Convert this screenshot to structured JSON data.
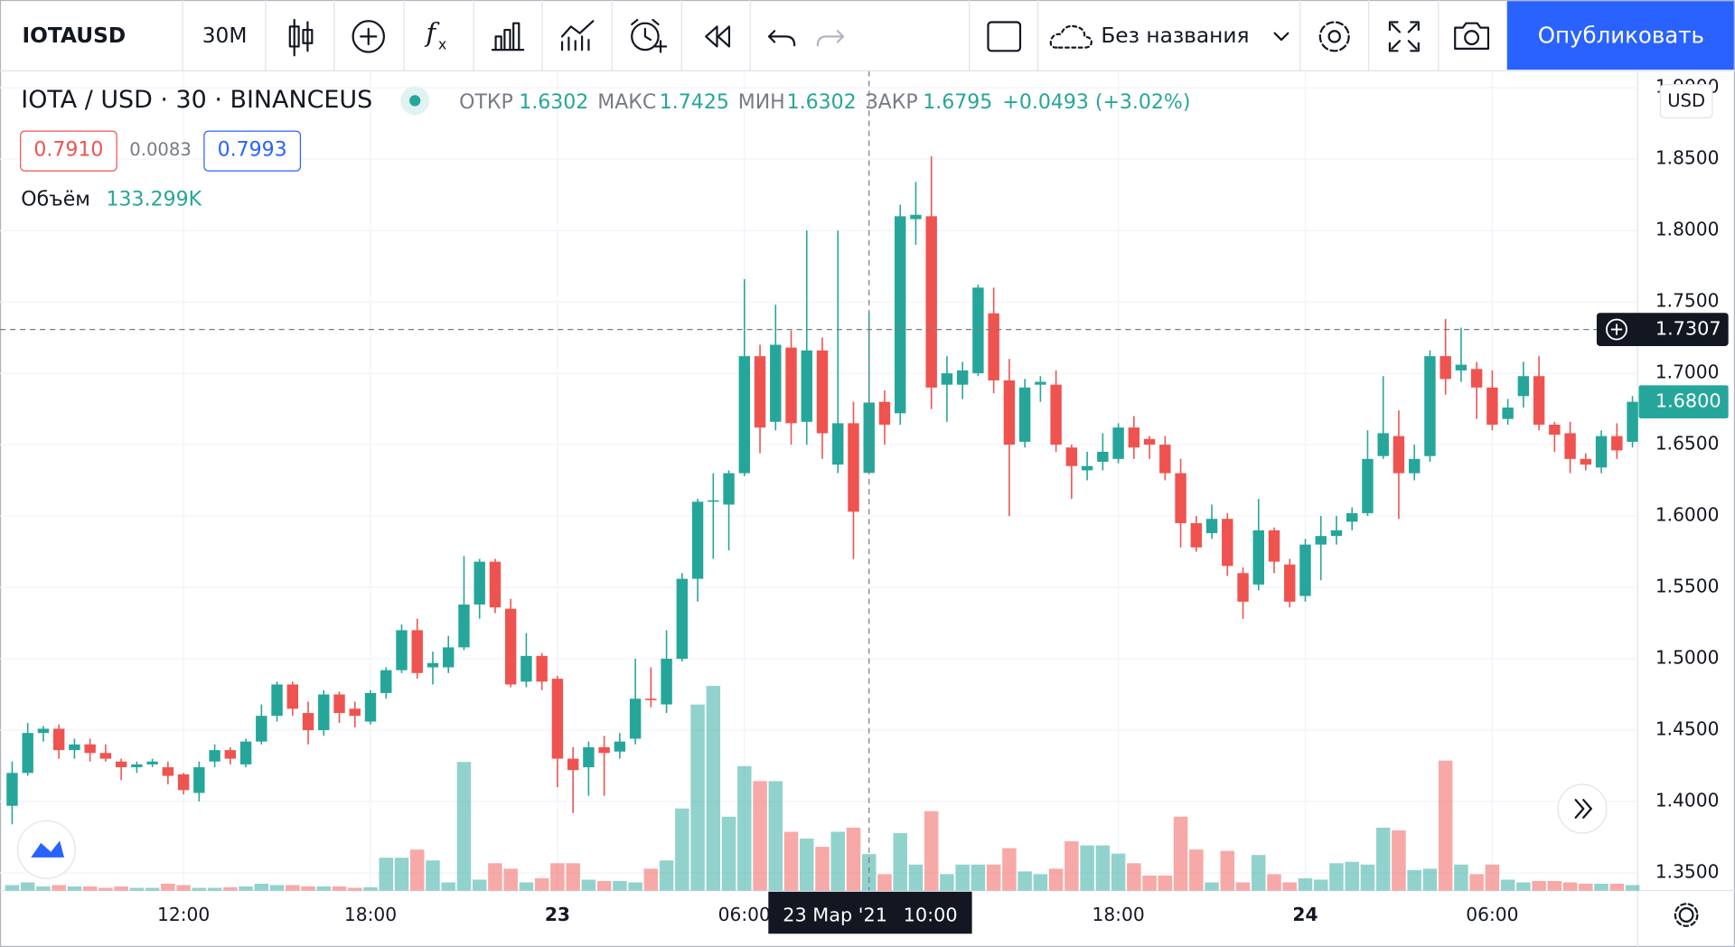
{
  "toolbar": {
    "symbol": "IOTAUSD",
    "interval": "30М",
    "layout_name": "Без названия",
    "publish": "Опубликовать"
  },
  "header": {
    "title": "IOTA / USD · 30 · BINANCEUS",
    "open_label": "ОТКР",
    "high_label": "МАКС",
    "low_label": "МИН",
    "close_label": "ЗАКР",
    "change": "+0.0493 (+3.02%)",
    "bid": "0.7910",
    "spread": "0.0083",
    "ask": "0.7993",
    "volume_name": "Объём",
    "volume_value_label": "133.299K",
    "currency": "USD"
  },
  "chart_data": {
    "type": "candlestick",
    "up_color": "#26a69a",
    "down_color": "#ef5350",
    "ylim": [
      1.3376,
      1.9119
    ],
    "yticks": [
      {
        "value": 1.35,
        "label": "1.3500"
      },
      {
        "value": 1.4,
        "label": "1.4000"
      },
      {
        "value": 1.45,
        "label": "1.4500"
      },
      {
        "value": 1.5,
        "label": "1.5000"
      },
      {
        "value": 1.55,
        "label": "1.5500"
      },
      {
        "value": 1.6,
        "label": "1.6000"
      },
      {
        "value": 1.65,
        "label": "1.6500"
      },
      {
        "value": 1.7,
        "label": "1.7000"
      },
      {
        "value": 1.75,
        "label": "1.7500"
      },
      {
        "value": 1.8,
        "label": "1.8000"
      },
      {
        "value": 1.85,
        "label": "1.8500"
      },
      {
        "value": 1.9,
        "label": "1.9000"
      }
    ],
    "xlim": [
      -0.78,
      104.33
    ],
    "xticks": [
      {
        "value": 11,
        "label": "12:00"
      },
      {
        "value": 23,
        "label": "18:00"
      },
      {
        "value": 35,
        "label": "23"
      },
      {
        "value": 47,
        "label": "06:00"
      },
      {
        "value": 71,
        "label": "18:00"
      },
      {
        "value": 83,
        "label": "24"
      },
      {
        "value": 95,
        "label": "06:00"
      }
    ],
    "grid": true,
    "crosshair": {
      "index": 55,
      "price": 1.7307,
      "date": "23 Мар '21",
      "time": "10:00"
    },
    "last_price_label": "1.6800",
    "candles": [
      {
        "open": 1.397,
        "high": 1.428,
        "low": 1.384,
        "close": 1.42
      },
      {
        "open": 1.42,
        "high": 1.455,
        "low": 1.418,
        "close": 1.448
      },
      {
        "open": 1.448,
        "high": 1.453,
        "low": 1.442,
        "close": 1.451
      },
      {
        "open": 1.451,
        "high": 1.454,
        "low": 1.43,
        "close": 1.436
      },
      {
        "open": 1.436,
        "high": 1.444,
        "low": 1.43,
        "close": 1.44
      },
      {
        "open": 1.44,
        "high": 1.444,
        "low": 1.428,
        "close": 1.434
      },
      {
        "open": 1.434,
        "high": 1.44,
        "low": 1.428,
        "close": 1.43
      },
      {
        "open": 1.428,
        "high": 1.43,
        "low": 1.415,
        "close": 1.424
      },
      {
        "open": 1.424,
        "high": 1.428,
        "low": 1.42,
        "close": 1.426
      },
      {
        "open": 1.426,
        "high": 1.43,
        "low": 1.424,
        "close": 1.428
      },
      {
        "open": 1.424,
        "high": 1.428,
        "low": 1.412,
        "close": 1.418
      },
      {
        "open": 1.419,
        "high": 1.42,
        "low": 1.405,
        "close": 1.408
      },
      {
        "open": 1.406,
        "high": 1.428,
        "low": 1.4,
        "close": 1.424
      },
      {
        "open": 1.428,
        "high": 1.44,
        "low": 1.424,
        "close": 1.436
      },
      {
        "open": 1.436,
        "high": 1.438,
        "low": 1.426,
        "close": 1.43
      },
      {
        "open": 1.426,
        "high": 1.444,
        "low": 1.424,
        "close": 1.442
      },
      {
        "open": 1.442,
        "high": 1.468,
        "low": 1.44,
        "close": 1.46
      },
      {
        "open": 1.46,
        "high": 1.484,
        "low": 1.456,
        "close": 1.482
      },
      {
        "open": 1.482,
        "high": 1.484,
        "low": 1.46,
        "close": 1.465
      },
      {
        "open": 1.462,
        "high": 1.47,
        "low": 1.44,
        "close": 1.45
      },
      {
        "open": 1.45,
        "high": 1.478,
        "low": 1.446,
        "close": 1.475
      },
      {
        "open": 1.475,
        "high": 1.477,
        "low": 1.455,
        "close": 1.462
      },
      {
        "open": 1.465,
        "high": 1.47,
        "low": 1.452,
        "close": 1.46
      },
      {
        "open": 1.456,
        "high": 1.478,
        "low": 1.454,
        "close": 1.476
      },
      {
        "open": 1.476,
        "high": 1.494,
        "low": 1.472,
        "close": 1.492
      },
      {
        "open": 1.492,
        "high": 1.524,
        "low": 1.49,
        "close": 1.52
      },
      {
        "open": 1.52,
        "high": 1.528,
        "low": 1.486,
        "close": 1.49
      },
      {
        "open": 1.494,
        "high": 1.505,
        "low": 1.482,
        "close": 1.497
      },
      {
        "open": 1.494,
        "high": 1.516,
        "low": 1.49,
        "close": 1.508
      },
      {
        "open": 1.508,
        "high": 1.572,
        "low": 1.506,
        "close": 1.538
      },
      {
        "open": 1.538,
        "high": 1.57,
        "low": 1.528,
        "close": 1.568
      },
      {
        "open": 1.568,
        "high": 1.57,
        "low": 1.532,
        "close": 1.536
      },
      {
        "open": 1.535,
        "high": 1.542,
        "low": 1.48,
        "close": 1.482
      },
      {
        "open": 1.484,
        "high": 1.518,
        "low": 1.48,
        "close": 1.502
      },
      {
        "open": 1.502,
        "high": 1.504,
        "low": 1.478,
        "close": 1.484
      },
      {
        "open": 1.486,
        "high": 1.488,
        "low": 1.41,
        "close": 1.43
      },
      {
        "open": 1.43,
        "high": 1.438,
        "low": 1.392,
        "close": 1.422
      },
      {
        "open": 1.424,
        "high": 1.442,
        "low": 1.404,
        "close": 1.438
      },
      {
        "open": 1.438,
        "high": 1.446,
        "low": 1.404,
        "close": 1.434
      },
      {
        "open": 1.435,
        "high": 1.448,
        "low": 1.43,
        "close": 1.442
      },
      {
        "open": 1.444,
        "high": 1.5,
        "low": 1.44,
        "close": 1.472
      },
      {
        "open": 1.472,
        "high": 1.494,
        "low": 1.466,
        "close": 1.471
      },
      {
        "open": 1.468,
        "high": 1.52,
        "low": 1.462,
        "close": 1.5
      },
      {
        "open": 1.5,
        "high": 1.56,
        "low": 1.498,
        "close": 1.556
      },
      {
        "open": 1.556,
        "high": 1.612,
        "low": 1.54,
        "close": 1.61
      },
      {
        "open": 1.61,
        "high": 1.63,
        "low": 1.57,
        "close": 1.611
      },
      {
        "open": 1.608,
        "high": 1.632,
        "low": 1.576,
        "close": 1.63
      },
      {
        "open": 1.63,
        "high": 1.766,
        "low": 1.628,
        "close": 1.712
      },
      {
        "open": 1.712,
        "high": 1.72,
        "low": 1.644,
        "close": 1.662
      },
      {
        "open": 1.666,
        "high": 1.748,
        "low": 1.66,
        "close": 1.72
      },
      {
        "open": 1.718,
        "high": 1.73,
        "low": 1.65,
        "close": 1.665
      },
      {
        "open": 1.666,
        "high": 1.8,
        "low": 1.65,
        "close": 1.716
      },
      {
        "open": 1.716,
        "high": 1.725,
        "low": 1.64,
        "close": 1.658
      },
      {
        "open": 1.636,
        "high": 1.8,
        "low": 1.63,
        "close": 1.665
      },
      {
        "open": 1.665,
        "high": 1.68,
        "low": 1.57,
        "close": 1.603
      },
      {
        "open": 1.6302,
        "high": 1.7425,
        "low": 1.6302,
        "close": 1.6795
      },
      {
        "open": 1.68,
        "high": 1.688,
        "low": 1.65,
        "close": 1.664
      },
      {
        "open": 1.672,
        "high": 1.818,
        "low": 1.664,
        "close": 1.81
      },
      {
        "open": 1.808,
        "high": 1.834,
        "low": 1.79,
        "close": 1.811
      },
      {
        "open": 1.81,
        "high": 1.852,
        "low": 1.675,
        "close": 1.69
      },
      {
        "open": 1.692,
        "high": 1.712,
        "low": 1.666,
        "close": 1.7
      },
      {
        "open": 1.692,
        "high": 1.708,
        "low": 1.682,
        "close": 1.702
      },
      {
        "open": 1.7,
        "high": 1.762,
        "low": 1.698,
        "close": 1.76
      },
      {
        "open": 1.742,
        "high": 1.76,
        "low": 1.686,
        "close": 1.695
      },
      {
        "open": 1.695,
        "high": 1.71,
        "low": 1.6,
        "close": 1.65
      },
      {
        "open": 1.652,
        "high": 1.696,
        "low": 1.648,
        "close": 1.69
      },
      {
        "open": 1.692,
        "high": 1.698,
        "low": 1.68,
        "close": 1.694
      },
      {
        "open": 1.692,
        "high": 1.702,
        "low": 1.645,
        "close": 1.65
      },
      {
        "open": 1.648,
        "high": 1.65,
        "low": 1.612,
        "close": 1.635
      },
      {
        "open": 1.632,
        "high": 1.645,
        "low": 1.625,
        "close": 1.635
      },
      {
        "open": 1.638,
        "high": 1.658,
        "low": 1.632,
        "close": 1.645
      },
      {
        "open": 1.64,
        "high": 1.665,
        "low": 1.637,
        "close": 1.662
      },
      {
        "open": 1.662,
        "high": 1.67,
        "low": 1.64,
        "close": 1.648
      },
      {
        "open": 1.654,
        "high": 1.656,
        "low": 1.64,
        "close": 1.65
      },
      {
        "open": 1.65,
        "high": 1.656,
        "low": 1.625,
        "close": 1.63
      },
      {
        "open": 1.63,
        "high": 1.64,
        "low": 1.578,
        "close": 1.595
      },
      {
        "open": 1.595,
        "high": 1.6,
        "low": 1.575,
        "close": 1.578
      },
      {
        "open": 1.588,
        "high": 1.608,
        "low": 1.584,
        "close": 1.598
      },
      {
        "open": 1.598,
        "high": 1.602,
        "low": 1.558,
        "close": 1.565
      },
      {
        "open": 1.56,
        "high": 1.564,
        "low": 1.528,
        "close": 1.54
      },
      {
        "open": 1.552,
        "high": 1.612,
        "low": 1.548,
        "close": 1.59
      },
      {
        "open": 1.59,
        "high": 1.592,
        "low": 1.56,
        "close": 1.568
      },
      {
        "open": 1.566,
        "high": 1.57,
        "low": 1.536,
        "close": 1.54
      },
      {
        "open": 1.544,
        "high": 1.584,
        "low": 1.54,
        "close": 1.58
      },
      {
        "open": 1.58,
        "high": 1.6,
        "low": 1.555,
        "close": 1.586
      },
      {
        "open": 1.586,
        "high": 1.6,
        "low": 1.58,
        "close": 1.59
      },
      {
        "open": 1.596,
        "high": 1.606,
        "low": 1.59,
        "close": 1.602
      },
      {
        "open": 1.602,
        "high": 1.66,
        "low": 1.6,
        "close": 1.64
      },
      {
        "open": 1.642,
        "high": 1.698,
        "low": 1.64,
        "close": 1.658
      },
      {
        "open": 1.656,
        "high": 1.674,
        "low": 1.598,
        "close": 1.63
      },
      {
        "open": 1.63,
        "high": 1.65,
        "low": 1.625,
        "close": 1.64
      },
      {
        "open": 1.642,
        "high": 1.716,
        "low": 1.638,
        "close": 1.712
      },
      {
        "open": 1.712,
        "high": 1.738,
        "low": 1.685,
        "close": 1.696
      },
      {
        "open": 1.702,
        "high": 1.732,
        "low": 1.694,
        "close": 1.706
      },
      {
        "open": 1.703,
        "high": 1.708,
        "low": 1.668,
        "close": 1.69
      },
      {
        "open": 1.69,
        "high": 1.702,
        "low": 1.66,
        "close": 1.664
      },
      {
        "open": 1.668,
        "high": 1.682,
        "low": 1.664,
        "close": 1.676
      },
      {
        "open": 1.684,
        "high": 1.708,
        "low": 1.676,
        "close": 1.698
      },
      {
        "open": 1.698,
        "high": 1.712,
        "low": 1.66,
        "close": 1.664
      },
      {
        "open": 1.664,
        "high": 1.666,
        "low": 1.645,
        "close": 1.657
      },
      {
        "open": 1.658,
        "high": 1.666,
        "low": 1.63,
        "close": 1.64
      },
      {
        "open": 1.64,
        "high": 1.644,
        "low": 1.632,
        "close": 1.636
      },
      {
        "open": 1.634,
        "high": 1.66,
        "low": 1.63,
        "close": 1.656
      },
      {
        "open": 1.656,
        "high": 1.665,
        "low": 1.64,
        "close": 1.646
      },
      {
        "open": 1.652,
        "high": 1.684,
        "low": 1.648,
        "close": 1.68
      }
    ],
    "volumes": [
      20,
      30,
      15,
      20,
      15,
      15,
      10,
      15,
      10,
      10,
      25,
      20,
      10,
      10,
      12,
      15,
      25,
      20,
      20,
      15,
      15,
      15,
      10,
      12,
      120,
      120,
      150,
      110,
      30,
      470,
      40,
      100,
      80,
      30,
      45,
      100,
      100,
      40,
      35,
      35,
      30,
      80,
      110,
      300,
      680,
      748,
      270,
      455,
      400,
      400,
      215,
      190,
      160,
      215,
      230,
      133.299,
      60,
      210,
      95,
      290,
      60,
      95,
      95,
      95,
      155,
      70,
      60,
      80,
      180,
      165,
      165,
      135,
      100,
      55,
      55,
      270,
      150,
      30,
      145,
      30,
      130,
      60,
      30,
      45,
      40,
      100,
      105,
      95,
      230,
      220,
      75,
      80,
      475,
      95,
      60,
      95,
      40,
      30,
      35,
      35,
      30,
      25,
      25,
      25,
      20
    ]
  }
}
